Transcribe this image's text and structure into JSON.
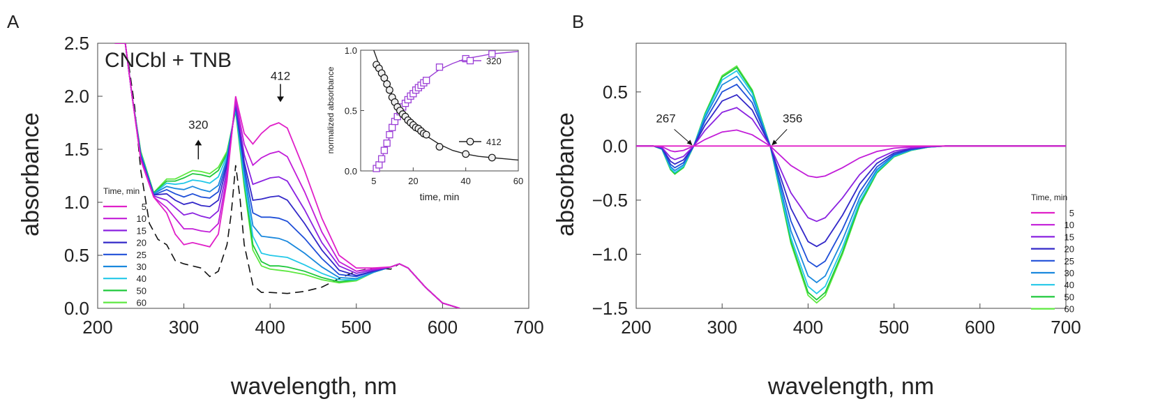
{
  "chart_data": [
    {
      "panel_label": "A",
      "type": "line",
      "title": "CNCbl + TNB",
      "xlabel": "wavelength, nm",
      "ylabel": "absorbance",
      "xlim": [
        200,
        700
      ],
      "ylim": [
        0,
        2.5
      ],
      "xticks": [
        "200",
        "300",
        "400",
        "500",
        "600",
        "700"
      ],
      "yticks": [
        "0.0",
        "0.5",
        "1.0",
        "1.5",
        "2.0",
        "2.5"
      ],
      "legend_title": "Time, min",
      "legend_position": "bottom-left",
      "annotations": [
        {
          "text": "320",
          "x": 320,
          "y": 1.55,
          "arrow": "up"
        },
        {
          "text": "412",
          "x": 412,
          "y": 2.05,
          "arrow": "down"
        }
      ],
      "reference_curve": {
        "name": "CNCbl",
        "style": "dashed",
        "x": [
          236,
          243,
          250,
          260,
          270,
          280,
          290,
          300,
          310,
          320,
          330,
          340,
          350,
          355,
          360,
          365,
          370,
          380,
          390,
          400,
          420,
          440,
          460,
          480,
          500,
          520,
          540,
          550,
          560,
          580,
          600,
          620
        ],
        "y": [
          2.3,
          1.9,
          1.3,
          0.8,
          0.65,
          0.6,
          0.45,
          0.42,
          0.4,
          0.38,
          0.3,
          0.35,
          0.6,
          0.9,
          1.35,
          1.05,
          0.6,
          0.22,
          0.15,
          0.15,
          0.14,
          0.16,
          0.2,
          0.28,
          0.35,
          0.38,
          0.37,
          0.42,
          0.38,
          0.2,
          0.05,
          0.0
        ]
      },
      "series": [
        {
          "name": "5",
          "color": "#e020c8",
          "x": [
            220,
            232,
            240,
            250,
            265,
            280,
            290,
            300,
            310,
            320,
            330,
            340,
            350,
            360,
            370,
            380,
            390,
            400,
            410,
            420,
            440,
            460,
            480,
            500,
            520,
            540,
            550,
            560,
            580,
            600,
            620
          ],
          "y": [
            2.5,
            2.5,
            2.0,
            1.4,
            1.05,
            0.9,
            0.7,
            0.6,
            0.62,
            0.6,
            0.58,
            0.7,
            1.2,
            2.0,
            1.65,
            1.55,
            1.65,
            1.72,
            1.75,
            1.7,
            1.3,
            0.85,
            0.5,
            0.38,
            0.38,
            0.39,
            0.42,
            0.38,
            0.2,
            0.05,
            0.0
          ]
        },
        {
          "name": "10",
          "color": "#c21cd8",
          "x": [
            220,
            232,
            240,
            250,
            265,
            280,
            290,
            300,
            310,
            320,
            330,
            340,
            350,
            360,
            370,
            380,
            390,
            400,
            410,
            420,
            440,
            460,
            480,
            500,
            520,
            540,
            550,
            560,
            580,
            600,
            620
          ],
          "y": [
            2.5,
            2.5,
            2.0,
            1.4,
            1.05,
            0.95,
            0.85,
            0.75,
            0.75,
            0.73,
            0.72,
            0.8,
            1.25,
            1.97,
            1.55,
            1.35,
            1.42,
            1.46,
            1.48,
            1.43,
            1.1,
            0.72,
            0.44,
            0.35,
            0.37,
            0.39,
            0.42,
            0.38,
            0.2,
            0.05,
            0.0
          ]
        },
        {
          "name": "15",
          "color": "#8a22e0",
          "x": [
            220,
            232,
            240,
            250,
            265,
            280,
            290,
            300,
            310,
            320,
            330,
            340,
            350,
            360,
            370,
            380,
            390,
            400,
            410,
            420,
            440,
            460,
            480,
            500,
            520,
            540,
            550,
            560,
            580,
            600,
            620
          ],
          "y": [
            2.5,
            2.5,
            2.0,
            1.42,
            1.06,
            1.02,
            0.95,
            0.88,
            0.9,
            0.87,
            0.85,
            0.92,
            1.3,
            1.95,
            1.45,
            1.17,
            1.2,
            1.23,
            1.24,
            1.2,
            0.93,
            0.62,
            0.4,
            0.33,
            0.36,
            0.39,
            0.42,
            0.38,
            0.2,
            0.05,
            0.0
          ]
        },
        {
          "name": "20",
          "color": "#3328c8",
          "x": [
            220,
            232,
            240,
            250,
            265,
            280,
            290,
            300,
            310,
            320,
            330,
            340,
            350,
            360,
            370,
            380,
            390,
            400,
            410,
            420,
            440,
            460,
            480,
            500,
            520,
            540,
            550,
            560,
            580,
            600,
            620
          ],
          "y": [
            2.5,
            2.5,
            2.0,
            1.43,
            1.07,
            1.08,
            1.02,
            0.98,
            1.0,
            0.97,
            0.96,
            1.02,
            1.35,
            1.93,
            1.38,
            1.02,
            1.03,
            1.05,
            1.06,
            1.02,
            0.8,
            0.55,
            0.36,
            0.31,
            0.35,
            0.39,
            0.42,
            0.38,
            0.2,
            0.05,
            0.0
          ]
        },
        {
          "name": "25",
          "color": "#1f4fd8",
          "x": [
            220,
            232,
            240,
            250,
            265,
            280,
            290,
            300,
            310,
            320,
            330,
            340,
            350,
            360,
            370,
            380,
            390,
            400,
            410,
            420,
            440,
            460,
            480,
            500,
            520,
            540,
            550,
            560,
            580,
            600,
            620
          ],
          "y": [
            2.5,
            2.5,
            2.0,
            1.44,
            1.07,
            1.12,
            1.08,
            1.05,
            1.08,
            1.05,
            1.04,
            1.1,
            1.38,
            1.91,
            1.33,
            0.9,
            0.86,
            0.86,
            0.85,
            0.82,
            0.66,
            0.47,
            0.32,
            0.3,
            0.35,
            0.39,
            0.42,
            0.38,
            0.2,
            0.05,
            0.0
          ]
        },
        {
          "name": "30",
          "color": "#1a88dd",
          "x": [
            220,
            232,
            240,
            250,
            265,
            280,
            290,
            300,
            310,
            320,
            330,
            340,
            350,
            360,
            370,
            380,
            390,
            400,
            410,
            420,
            440,
            460,
            480,
            500,
            520,
            540,
            550,
            560,
            580,
            600,
            620
          ],
          "y": [
            2.5,
            2.5,
            2.0,
            1.45,
            1.08,
            1.15,
            1.13,
            1.12,
            1.15,
            1.12,
            1.1,
            1.16,
            1.41,
            1.9,
            1.28,
            0.78,
            0.68,
            0.67,
            0.66,
            0.63,
            0.52,
            0.39,
            0.29,
            0.28,
            0.34,
            0.39,
            0.42,
            0.38,
            0.2,
            0.05,
            0.0
          ]
        },
        {
          "name": "40",
          "color": "#22c8e8",
          "x": [
            220,
            232,
            240,
            250,
            265,
            280,
            290,
            300,
            310,
            320,
            330,
            340,
            350,
            360,
            370,
            380,
            390,
            400,
            410,
            420,
            440,
            460,
            480,
            500,
            520,
            540,
            550,
            560,
            580,
            600,
            620
          ],
          "y": [
            2.5,
            2.5,
            2.0,
            1.46,
            1.08,
            1.18,
            1.17,
            1.18,
            1.21,
            1.2,
            1.18,
            1.24,
            1.44,
            1.88,
            1.22,
            0.68,
            0.52,
            0.5,
            0.49,
            0.48,
            0.41,
            0.33,
            0.27,
            0.27,
            0.34,
            0.39,
            0.42,
            0.38,
            0.2,
            0.05,
            0.0
          ]
        },
        {
          "name": "50",
          "color": "#1fc83c",
          "x": [
            220,
            232,
            240,
            250,
            265,
            280,
            290,
            300,
            310,
            320,
            330,
            340,
            350,
            360,
            370,
            380,
            390,
            400,
            410,
            420,
            440,
            460,
            480,
            500,
            520,
            540,
            550,
            560,
            580,
            600,
            620
          ],
          "y": [
            2.5,
            2.5,
            2.0,
            1.47,
            1.09,
            1.2,
            1.2,
            1.23,
            1.27,
            1.26,
            1.24,
            1.3,
            1.46,
            1.87,
            1.18,
            0.6,
            0.44,
            0.4,
            0.4,
            0.39,
            0.35,
            0.29,
            0.25,
            0.27,
            0.34,
            0.39,
            0.42,
            0.38,
            0.2,
            0.05,
            0.0
          ]
        },
        {
          "name": "60",
          "color": "#5de840",
          "x": [
            220,
            232,
            240,
            250,
            265,
            280,
            290,
            300,
            310,
            320,
            330,
            340,
            350,
            360,
            370,
            380,
            390,
            400,
            410,
            420,
            440,
            460,
            480,
            500,
            520,
            540,
            550,
            560,
            580,
            600,
            620
          ],
          "y": [
            2.5,
            2.5,
            2.0,
            1.48,
            1.09,
            1.22,
            1.22,
            1.26,
            1.3,
            1.29,
            1.27,
            1.33,
            1.48,
            1.86,
            1.15,
            0.55,
            0.4,
            0.37,
            0.36,
            0.35,
            0.32,
            0.27,
            0.24,
            0.26,
            0.34,
            0.39,
            0.42,
            0.38,
            0.2,
            0.05,
            0.0
          ]
        }
      ],
      "inset": {
        "type": "scatter",
        "xlabel": "time, min",
        "ylabel": "normalized absorbance",
        "xlim": [
          0,
          60
        ],
        "ylim": [
          0,
          1
        ],
        "xticks": [
          "5",
          "20",
          "40",
          "60"
        ],
        "yticks": [
          "0.0",
          "0.5",
          "1.0"
        ],
        "series": [
          {
            "name": "320",
            "color": "#9b3fd6",
            "marker": "square",
            "x": [
              6,
              7,
              8,
              9,
              10,
              11,
              12,
              13,
              14,
              15,
              16,
              17,
              18,
              19,
              20,
              21,
              22,
              23,
              24,
              25,
              30,
              40,
              50
            ],
            "y": [
              0.02,
              0.05,
              0.1,
              0.17,
              0.23,
              0.3,
              0.36,
              0.41,
              0.45,
              0.49,
              0.53,
              0.56,
              0.59,
              0.62,
              0.64,
              0.67,
              0.69,
              0.71,
              0.73,
              0.75,
              0.86,
              0.93,
              0.97
            ],
            "fit_x": [
              5,
              8,
              12,
              16,
              20,
              25,
              30,
              35,
              40,
              45,
              50,
              55,
              60
            ],
            "fit_y": [
              0.0,
              0.1,
              0.34,
              0.52,
              0.64,
              0.76,
              0.84,
              0.89,
              0.93,
              0.95,
              0.97,
              0.98,
              0.99
            ]
          },
          {
            "name": "412",
            "color": "#222222",
            "marker": "circle",
            "x": [
              6,
              7,
              8,
              9,
              10,
              11,
              12,
              13,
              14,
              15,
              16,
              17,
              18,
              19,
              20,
              21,
              22,
              23,
              24,
              25,
              30,
              40,
              50
            ],
            "y": [
              0.88,
              0.85,
              0.81,
              0.77,
              0.72,
              0.67,
              0.61,
              0.57,
              0.53,
              0.5,
              0.47,
              0.45,
              0.42,
              0.4,
              0.38,
              0.36,
              0.35,
              0.33,
              0.31,
              0.3,
              0.2,
              0.14,
              0.11
            ],
            "fit_x": [
              5,
              8,
              12,
              16,
              20,
              25,
              30,
              35,
              40,
              45,
              50,
              55,
              60
            ],
            "fit_y": [
              1.0,
              0.82,
              0.63,
              0.48,
              0.38,
              0.29,
              0.22,
              0.17,
              0.14,
              0.12,
              0.11,
              0.1,
              0.09
            ]
          }
        ]
      }
    },
    {
      "panel_label": "B",
      "type": "line",
      "title": "",
      "xlabel": "wavelength, nm",
      "ylabel": "absorbance",
      "xlim": [
        200,
        700
      ],
      "ylim": [
        -1.5,
        0.95
      ],
      "xticks": [
        "200",
        "300",
        "400",
        "500",
        "600",
        "700"
      ],
      "yticks": [
        "−1.5",
        "−1.0",
        "−0.5",
        "0.0",
        "0.5"
      ],
      "ytick_values": [
        -1.5,
        -1.0,
        -0.5,
        0.0,
        0.5
      ],
      "legend_title": "Time, min",
      "legend_position": "bottom-right",
      "annotations": [
        {
          "text": "267",
          "x": 267,
          "y": 0.0
        },
        {
          "text": "356",
          "x": 356,
          "y": 0.0
        }
      ],
      "shape": {
        "x": [
          200,
          220,
          230,
          240,
          245,
          255,
          267,
          280,
          300,
          317,
          335,
          356,
          380,
          400,
          410,
          420,
          440,
          460,
          480,
          500,
          520,
          540,
          560,
          600,
          650,
          700
        ],
        "y": [
          0.0,
          0.0,
          -0.03,
          -0.22,
          -0.26,
          -0.2,
          0.0,
          0.3,
          0.65,
          0.74,
          0.52,
          0.0,
          -0.9,
          -1.38,
          -1.45,
          -1.38,
          -1.0,
          -0.55,
          -0.25,
          -0.1,
          -0.04,
          -0.01,
          0.0,
          0.0,
          0.0,
          0.0
        ]
      },
      "series": [
        {
          "name": "5",
          "color": "#e020c8",
          "scale": 0.0
        },
        {
          "name": "10",
          "color": "#c21cd8",
          "scale": 0.2
        },
        {
          "name": "15",
          "color": "#8a22e0",
          "scale": 0.48
        },
        {
          "name": "20",
          "color": "#3328c8",
          "scale": 0.64
        },
        {
          "name": "25",
          "color": "#1f4fd8",
          "scale": 0.77
        },
        {
          "name": "30",
          "color": "#1a88dd",
          "scale": 0.87
        },
        {
          "name": "40",
          "color": "#22c8e8",
          "scale": 0.94
        },
        {
          "name": "50",
          "color": "#1fc83c",
          "scale": 0.98
        },
        {
          "name": "60",
          "color": "#5de840",
          "scale": 1.0
        }
      ]
    }
  ]
}
